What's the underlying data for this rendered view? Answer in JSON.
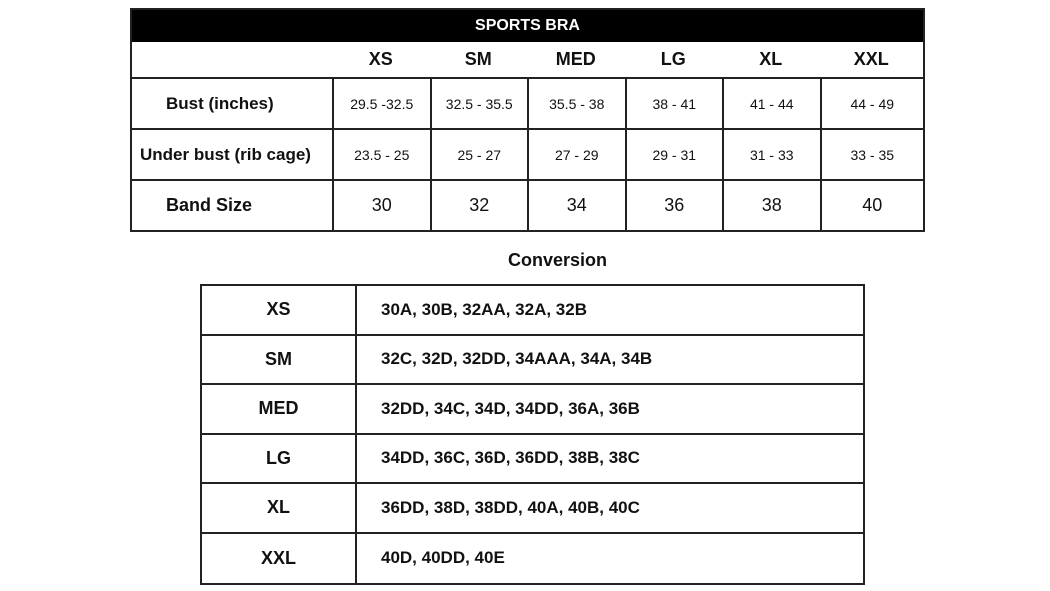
{
  "size_chart": {
    "title": "SPORTS BRA",
    "sizes": [
      "XS",
      "SM",
      "MED",
      "LG",
      "XL",
      "XXL"
    ],
    "rows": [
      {
        "label": "Bust (inches)",
        "values": [
          "29.5 -32.5",
          "32.5 - 35.5",
          "35.5 - 38",
          "38 - 41",
          "41 - 44",
          "44 - 49"
        ]
      },
      {
        "label": "Under bust (rib cage)",
        "values": [
          "23.5 - 25",
          "25 - 27",
          "27 - 29",
          "29 - 31",
          "31 - 33",
          "33 - 35"
        ]
      },
      {
        "label": "Band Size",
        "values": [
          "30",
          "32",
          "34",
          "36",
          "38",
          "40"
        ]
      }
    ]
  },
  "conversion": {
    "title": "Conversion",
    "rows": [
      {
        "size": "XS",
        "values": "30A, 30B, 32AA, 32A, 32B"
      },
      {
        "size": "SM",
        "values": "32C, 32D, 32DD, 34AAA, 34A, 34B"
      },
      {
        "size": "MED",
        "values": "32DD, 34C, 34D, 34DD, 36A, 36B"
      },
      {
        "size": "LG",
        "values": "34DD, 36C, 36D, 36DD, 38B, 38C"
      },
      {
        "size": "XL",
        "values": "36DD, 38D, 38DD, 40A, 40B, 40C"
      },
      {
        "size": "XXL",
        "values": "40D, 40DD, 40E"
      }
    ]
  }
}
